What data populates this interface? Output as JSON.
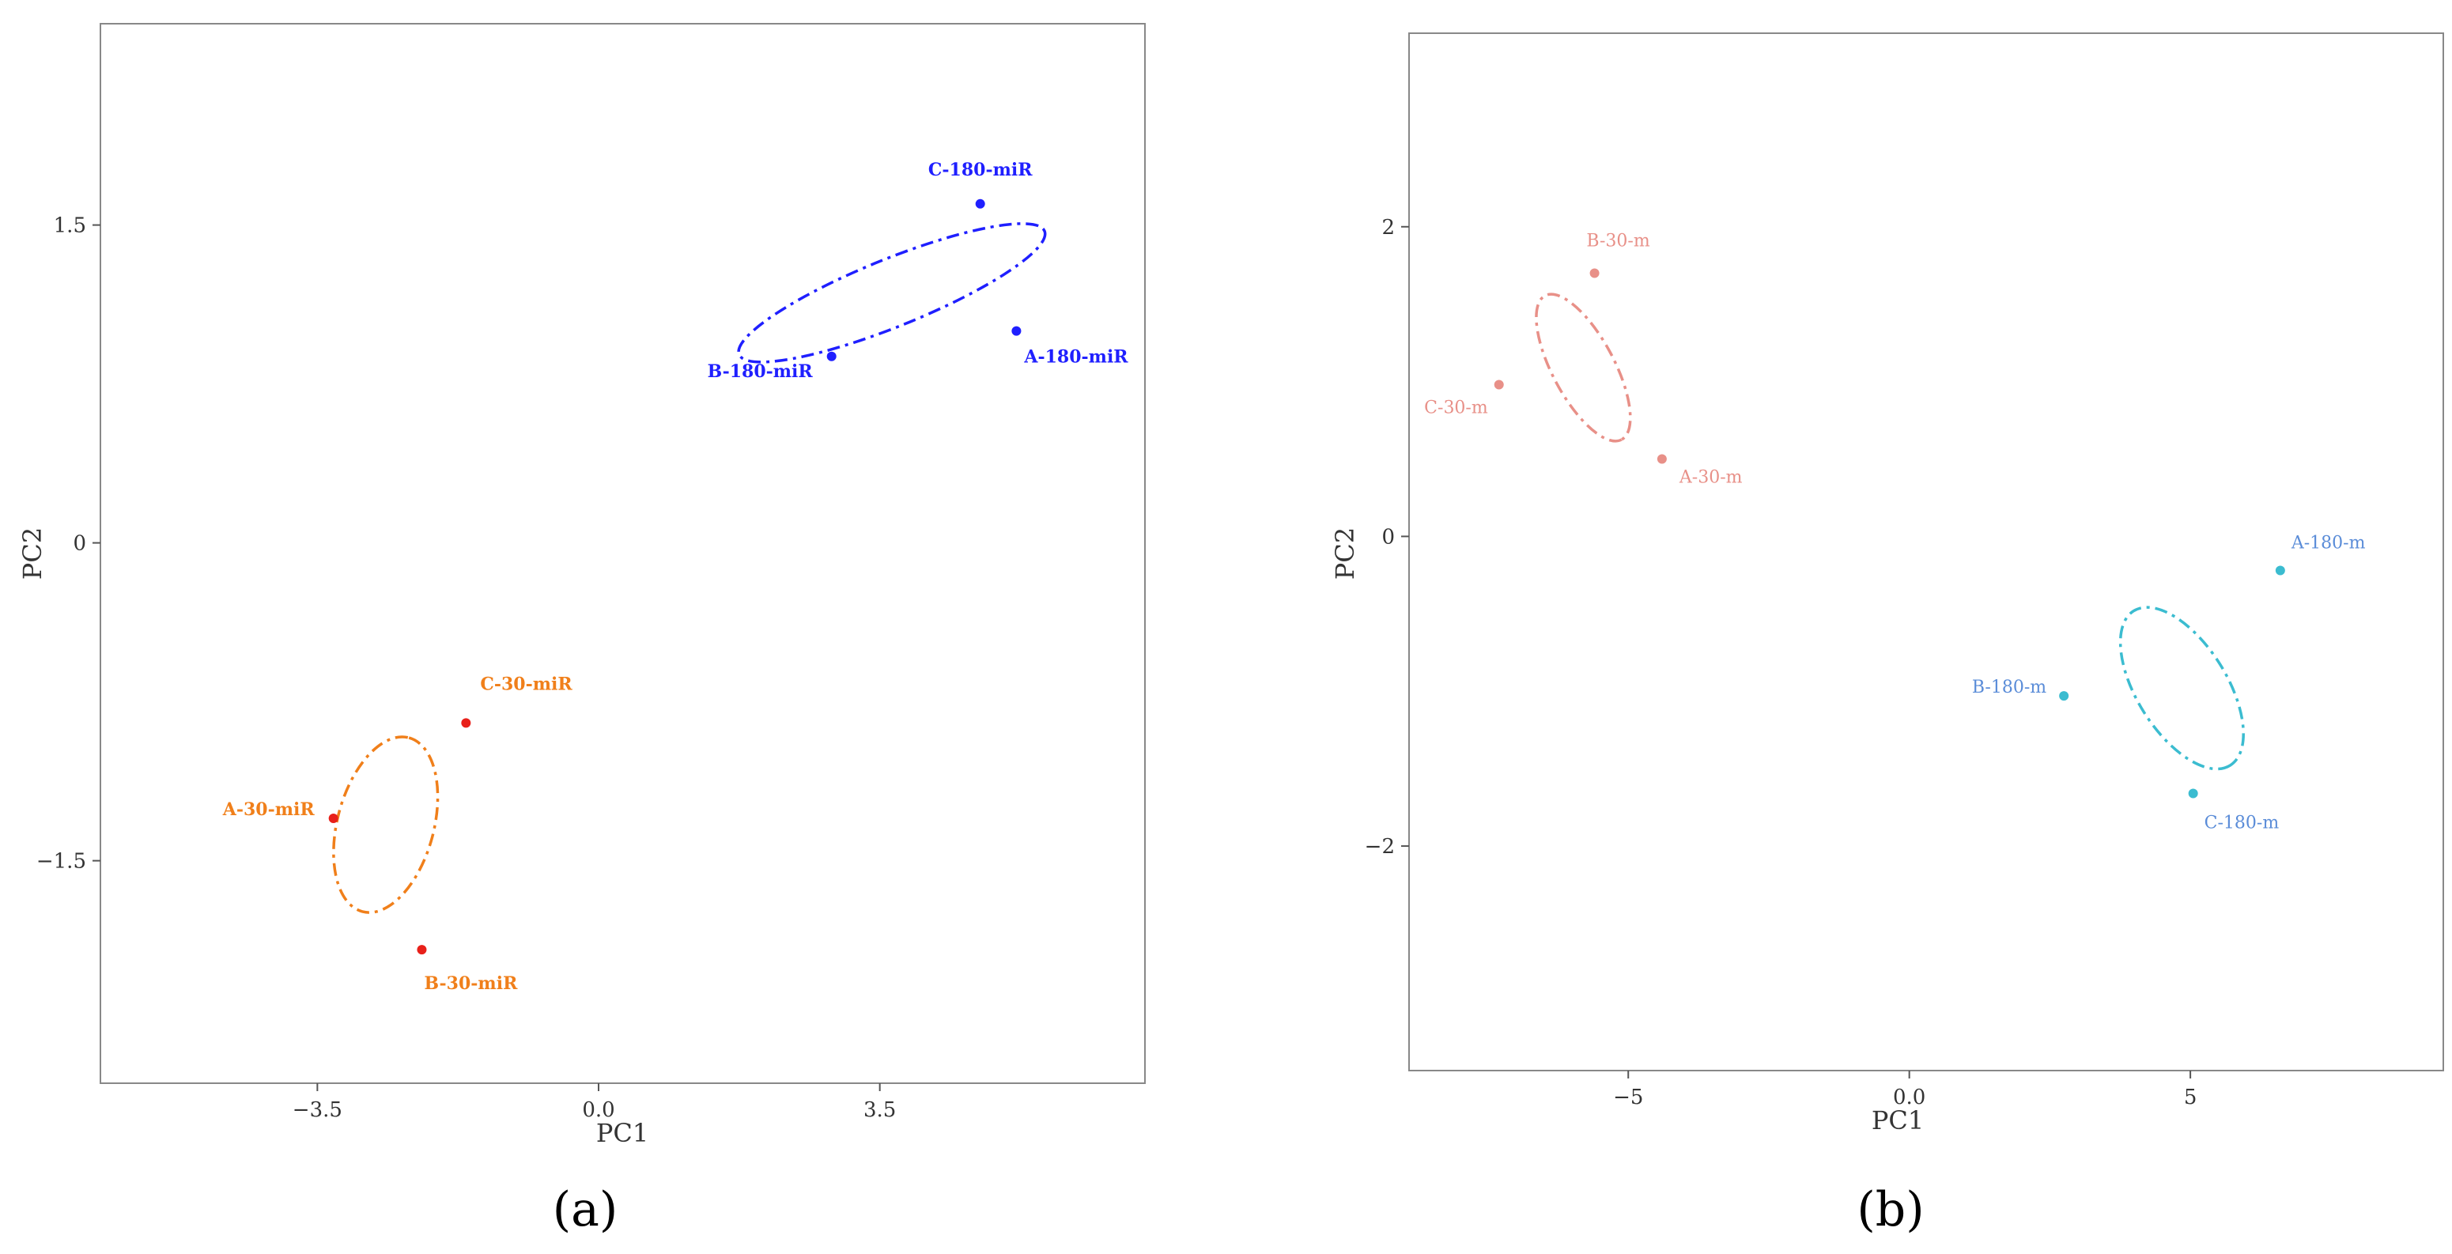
{
  "chart_data": [
    {
      "type": "scatter",
      "caption": "(a)",
      "xlabel": "PC1",
      "ylabel": "PC2",
      "xlim": [
        -6.2,
        6.8
      ],
      "ylim": [
        -2.55,
        2.45
      ],
      "xticks": [
        -3.5,
        0.0,
        3.5
      ],
      "xtick_labels": [
        "−3.5",
        "0.0",
        "3.5"
      ],
      "yticks": [
        -1.5,
        0,
        1.5
      ],
      "ytick_labels": [
        "−1.5",
        "0",
        "1.5"
      ],
      "grid": false,
      "bold_labels": true,
      "groups": [
        {
          "color": "#1f1fff",
          "point_color": "#1f1fff",
          "ellipse": {
            "cx": 3.65,
            "cy": 1.18,
            "rx": 2.05,
            "ry": 0.42,
            "angle": 22
          },
          "points": [
            {
              "label": "C-180-miR",
              "x": 4.75,
              "y": 1.6
            },
            {
              "label": "B-180-miR",
              "x": 2.9,
              "y": 0.88
            },
            {
              "label": "A-180-miR",
              "x": 5.2,
              "y": 1.0
            }
          ]
        },
        {
          "color": "#f07f1a",
          "point_color": "#e8201a",
          "ellipse": {
            "cx": -2.65,
            "cy": -1.33,
            "rx": 1.12,
            "ry": 0.6,
            "angle": 75
          },
          "points": [
            {
              "label": "C-30-miR",
              "x": -1.65,
              "y": -0.85
            },
            {
              "label": "A-30-miR",
              "x": -3.3,
              "y": -1.3
            },
            {
              "label": "B-30-miR",
              "x": -2.2,
              "y": -1.92
            }
          ]
        }
      ]
    },
    {
      "type": "scatter",
      "caption": "(b)",
      "xlabel": "PC1",
      "ylabel": "PC2",
      "xlim": [
        -8.9,
        9.5
      ],
      "ylim": [
        -3.45,
        3.25
      ],
      "xticks": [
        -5,
        0.0,
        5
      ],
      "xtick_labels": [
        "−5",
        "0.0",
        "5"
      ],
      "yticks": [
        -2,
        0,
        2
      ],
      "ytick_labels": [
        "−2",
        "0",
        "2"
      ],
      "grid": false,
      "bold_labels": false,
      "groups": [
        {
          "color": "#e89088",
          "point_color": "#e89088",
          "ellipse": {
            "cx": -5.8,
            "cy": 1.09,
            "rx": 1.45,
            "ry": 0.55,
            "angle": -62
          },
          "points": [
            {
              "label": "B-30-m",
              "x": -5.6,
              "y": 1.7
            },
            {
              "label": "C-30-m",
              "x": -7.3,
              "y": 0.98
            },
            {
              "label": "A-30-m",
              "x": -4.4,
              "y": 0.5
            }
          ]
        },
        {
          "color": "#3bbcd0",
          "point_color": "#3bbcd0",
          "label_color": "#5a8cd8",
          "ellipse": {
            "cx": 4.85,
            "cy": -0.98,
            "rx": 1.62,
            "ry": 0.8,
            "angle": -58
          },
          "points": [
            {
              "label": "A-180-m",
              "x": 6.6,
              "y": -0.22
            },
            {
              "label": "B-180-m",
              "x": 2.75,
              "y": -1.03
            },
            {
              "label": "C-180-m",
              "x": 5.05,
              "y": -1.66
            }
          ]
        }
      ]
    }
  ]
}
